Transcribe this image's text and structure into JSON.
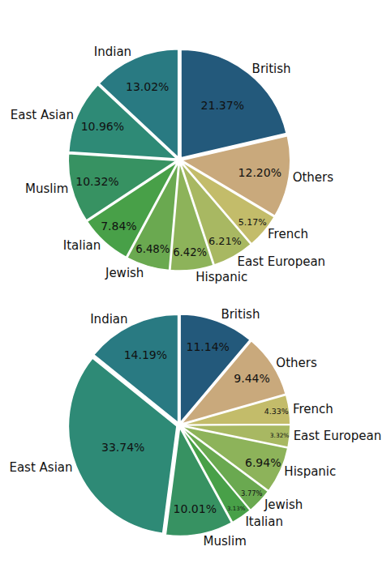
{
  "chart_data": [
    {
      "type": "pie",
      "categories": [
        "British",
        "Indian",
        "East Asian",
        "Muslim",
        "Italian",
        "Jewish",
        "Hispanic",
        "East European",
        "French",
        "Others"
      ],
      "values": [
        21.37,
        13.02,
        10.96,
        10.32,
        7.84,
        6.48,
        6.42,
        6.21,
        5.17,
        12.2
      ],
      "value_labels": [
        "21.37%",
        "13.02%",
        "10.96%",
        "10.32%",
        "7.84%",
        "6.48%",
        "6.42%",
        "6.21%",
        "5.17%",
        "12.20%"
      ],
      "colors": [
        "#23597b",
        "#297a82",
        "#2e8a76",
        "#379262",
        "#48a048",
        "#6aa950",
        "#8db35a",
        "#a8b862",
        "#c3bc6a",
        "#c9a97c"
      ],
      "data_labels": true
    },
    {
      "type": "pie",
      "categories": [
        "British",
        "Indian",
        "East Asian",
        "Muslim",
        "Italian",
        "Jewish",
        "Hispanic",
        "East European",
        "French",
        "Others"
      ],
      "values": [
        11.14,
        14.19,
        33.74,
        10.01,
        3.13,
        3.77,
        6.94,
        3.32,
        4.33,
        9.44
      ],
      "value_labels": [
        "11.14%",
        "14.19%",
        "33.74%",
        "10.01%",
        "3.13%",
        "3.77%",
        "6.94%",
        "3.32%",
        "4.33%",
        "9.44%"
      ],
      "colors": [
        "#23597b",
        "#297a82",
        "#2e8a76",
        "#379262",
        "#48a048",
        "#6aa950",
        "#8db35a",
        "#a8b862",
        "#c3bc6a",
        "#c9a97c"
      ],
      "data_labels": true
    }
  ]
}
